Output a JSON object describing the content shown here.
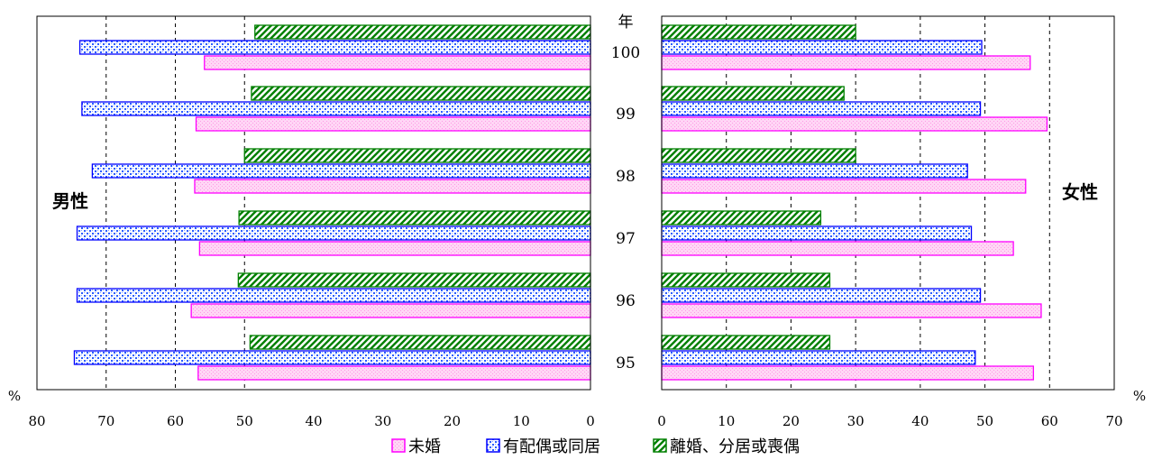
{
  "chart_data": {
    "type": "bar",
    "orientation": "horizontal",
    "layout": "back-to-back",
    "year_axis_label": "年",
    "unit_left": "%",
    "unit_right": "%",
    "legend_placement": "bottom-center",
    "grid": "dashed-vertical",
    "categories": [
      "100",
      "99",
      "98",
      "97",
      "96",
      "95"
    ],
    "series_defs": [
      {
        "key": "widowed",
        "name": "離婚、分居或喪偶",
        "stroke": "#008000",
        "fill": "#ffffff",
        "pattern": "diagonal-hatch-green"
      },
      {
        "key": "married",
        "name": "有配偶或同居",
        "stroke": "#0000ff",
        "fill": "#6699ff",
        "pattern": "dots-blue"
      },
      {
        "key": "single",
        "name": "未婚",
        "stroke": "#ff00ff",
        "fill": "#ffccff",
        "pattern": "fine-pink"
      }
    ],
    "legend_order": [
      "single",
      "married",
      "widowed"
    ],
    "panels": [
      {
        "side": "left",
        "label": "男性",
        "xlim": [
          0,
          80
        ],
        "reversed": true,
        "ticks": [
          "80",
          "70",
          "60",
          "50",
          "40",
          "30",
          "20",
          "10",
          "0"
        ],
        "gridlines": [
          70,
          60,
          50
        ],
        "values": {
          "widowed": [
            48.5,
            49.0,
            50.0,
            50.8,
            50.9,
            49.2
          ],
          "married": [
            73.8,
            73.5,
            72.0,
            74.2,
            74.2,
            74.6
          ],
          "single": [
            55.8,
            57.0,
            57.2,
            56.5,
            57.7,
            56.7
          ]
        }
      },
      {
        "side": "right",
        "label": "女性",
        "xlim": [
          0,
          70
        ],
        "reversed": false,
        "ticks": [
          "0",
          "10",
          "20",
          "30",
          "40",
          "50",
          "60",
          "70"
        ],
        "gridlines": [
          10,
          20,
          30,
          40,
          50,
          60
        ],
        "values": {
          "widowed": [
            30.0,
            28.2,
            30.0,
            24.6,
            26.0,
            26.0
          ],
          "married": [
            49.5,
            49.3,
            47.3,
            47.9,
            49.3,
            48.5
          ],
          "single": [
            57.0,
            59.6,
            56.3,
            54.4,
            58.7,
            57.5
          ]
        }
      }
    ]
  }
}
